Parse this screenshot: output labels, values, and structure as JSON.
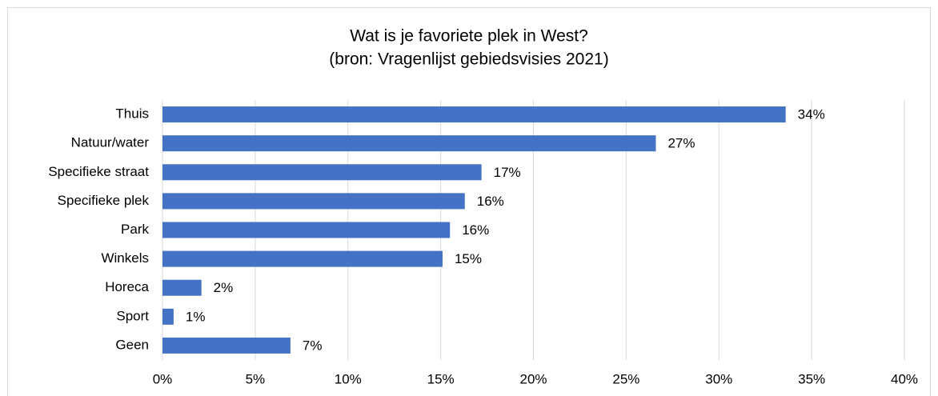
{
  "chart_data": {
    "type": "bar",
    "orientation": "horizontal",
    "title": "Wat is je favoriete plek in West?",
    "subtitle": "(bron: Vragenlijst gebiedsvisies 2021)",
    "categories": [
      "Thuis",
      "Natuur/water",
      "Specifieke straat",
      "Specifieke plek",
      "Park",
      "Winkels",
      "Horeca",
      "Sport",
      "Geen"
    ],
    "values": [
      33.6,
      26.6,
      17.2,
      16.3,
      15.5,
      15.1,
      2.1,
      0.6,
      6.9
    ],
    "value_labels": [
      "34%",
      "27%",
      "17%",
      "16%",
      "16%",
      "15%",
      "2%",
      "1%",
      "7%"
    ],
    "color": "#4472c4",
    "xlim": [
      0,
      40
    ],
    "xticks": [
      {
        "value": 0,
        "label": "0%"
      },
      {
        "value": 5,
        "label": "5%"
      },
      {
        "value": 10,
        "label": "10%"
      },
      {
        "value": 15,
        "label": "15%"
      },
      {
        "value": 20,
        "label": "20%"
      },
      {
        "value": 25,
        "label": "25%"
      },
      {
        "value": 30,
        "label": "30%"
      },
      {
        "value": 35,
        "label": "35%"
      },
      {
        "value": 40,
        "label": "40%"
      }
    ],
    "grid": true
  }
}
